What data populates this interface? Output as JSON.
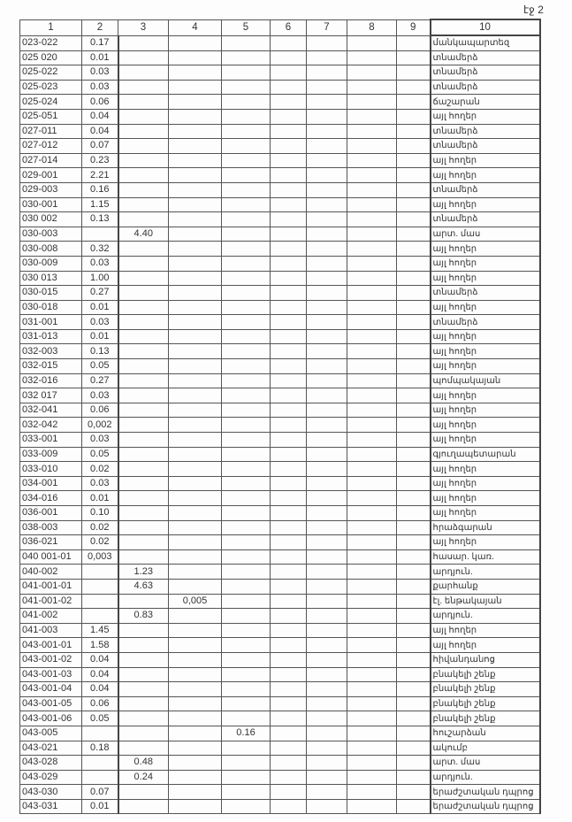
{
  "page_label": "էջ 2",
  "columns": [
    "1",
    "2",
    "3",
    "4",
    "5",
    "6",
    "7",
    "8",
    "9",
    "10"
  ],
  "rows": [
    {
      "c1": "023-022",
      "c2": "0.17",
      "c10": "մանկապարտեզ"
    },
    {
      "c1": "025 020",
      "c2": "0.01",
      "c10": "տնամերձ"
    },
    {
      "c1": "025-022",
      "c2": "0.03",
      "c10": "տնամերձ"
    },
    {
      "c1": "025-023",
      "c2": "0.03",
      "c10": "տնամերձ"
    },
    {
      "c1": "025-024",
      "c2": "0.06",
      "c10": "ճաշարան"
    },
    {
      "c1": "025-051",
      "c2": "0.04",
      "c10": "այլ հողեր"
    },
    {
      "c1": "027-011",
      "c2": "0.04",
      "c10": "տնամերձ"
    },
    {
      "c1": "027-012",
      "c2": "0.07",
      "c10": "տնամերձ"
    },
    {
      "c1": "027-014",
      "c2": "0.23",
      "c10": "այլ հողեր"
    },
    {
      "c1": "029-001",
      "c2": "2.21",
      "c10": "այլ հողեր"
    },
    {
      "c1": "029-003",
      "c2": "0.16",
      "c10": "տնամերձ"
    },
    {
      "c1": "030-001",
      "c2": "1.15",
      "c10": "այլ հողեր"
    },
    {
      "c1": "030 002",
      "c2": "0.13",
      "c10": "տնամերձ"
    },
    {
      "c1": "030-003",
      "c3": "4.40",
      "c10": "արտ. մաս"
    },
    {
      "c1": "030-008",
      "c2": "0.32",
      "c10": "այլ հողեր"
    },
    {
      "c1": "030-009",
      "c2": "0.03",
      "c10": "այլ հողեր"
    },
    {
      "c1": "030 013",
      "c2": "1.00",
      "c10": "այլ հողեր"
    },
    {
      "c1": "030-015",
      "c2": "0.27",
      "c10": "տնամերձ"
    },
    {
      "c1": "030-018",
      "c2": "0.01",
      "c10": "այլ հողեր"
    },
    {
      "c1": "031-001",
      "c2": "0.03",
      "c10": "տնամերձ"
    },
    {
      "c1": "031-013",
      "c2": "0.01",
      "c10": "այլ հողեր"
    },
    {
      "c1": "032-003",
      "c2": "0.13",
      "c10": "այլ հողեր"
    },
    {
      "c1": "032-015",
      "c2": "0.05",
      "c10": "այլ հողեր"
    },
    {
      "c1": "032-016",
      "c2": "0.27",
      "c10": "պոմպակայան"
    },
    {
      "c1": "032 017",
      "c2": "0.03",
      "c10": "այլ հողեր"
    },
    {
      "c1": "032-041",
      "c2": "0.06",
      "c10": "այլ հողեր"
    },
    {
      "c1": "032-042",
      "c2": "0,002",
      "c10": "այլ հողեր"
    },
    {
      "c1": "033-001",
      "c2": "0.03",
      "c10": "այլ հողեր"
    },
    {
      "c1": "033-009",
      "c2": "0.05",
      "c10": "գյուղապետարան"
    },
    {
      "c1": "033-010",
      "c2": "0.02",
      "c10": "այլ հողեր"
    },
    {
      "c1": "034-001",
      "c2": "0.03",
      "c10": "այլ հողեր"
    },
    {
      "c1": "034-016",
      "c2": "0.01",
      "c10": "այլ հողեր"
    },
    {
      "c1": "036-001",
      "c2": "0.10",
      "c10": "այլ հողեր"
    },
    {
      "c1": "038-003",
      "c2": "0.02",
      "c10": "հրաձգարան"
    },
    {
      "c1": "036-021",
      "c2": "0.02",
      "c10": "այլ հողեր"
    },
    {
      "c1": "040 001-01",
      "c2": "0,003",
      "c10": "հասար. կառ."
    },
    {
      "c1": "040-002",
      "c3": "1.23",
      "c10": "արդյուն."
    },
    {
      "c1": "041-001-01",
      "c3": "4.63",
      "c10": "քարհանք"
    },
    {
      "c1": "041-001-02",
      "c4": "0,005",
      "c10": "էլ. ենթակայան"
    },
    {
      "c1": "041-002",
      "c3": "0.83",
      "c10": "արդյուն."
    },
    {
      "c1": "041-003",
      "c2": "1.45",
      "c10": "այլ հողեր"
    },
    {
      "c1": "043-001-01",
      "c2": "1.58",
      "c10": "այլ հողեր"
    },
    {
      "c1": "043-001-02",
      "c2": "0.04",
      "c10": "հիվանդանոց"
    },
    {
      "c1": "043-001-03",
      "c2": "0.04",
      "c10": "բնակելի շենք"
    },
    {
      "c1": "043-001-04",
      "c2": "0.04",
      "c10": "բնակելի շենք"
    },
    {
      "c1": "043-001-05",
      "c2": "0.06",
      "c10": "բնակելի շենք"
    },
    {
      "c1": "043-001-06",
      "c2": "0.05",
      "c10": "բնակելի շենք"
    },
    {
      "c1": "043-005",
      "c5": "0.16",
      "c10": "հուշարձան"
    },
    {
      "c1": "043-021",
      "c2": "0.18",
      "c10": "ակումբ"
    },
    {
      "c1": "043-028",
      "c3": "0.48",
      "c10": "արտ. մաս"
    },
    {
      "c1": "043-029",
      "c3": "0.24",
      "c10": "արդյուն."
    },
    {
      "c1": "043-030",
      "c2": "0.07",
      "c10": "երաժշտական դպրոց"
    },
    {
      "c1": "043-031",
      "c2": "0.01",
      "c10": "երաժշտական դպրոց"
    }
  ]
}
